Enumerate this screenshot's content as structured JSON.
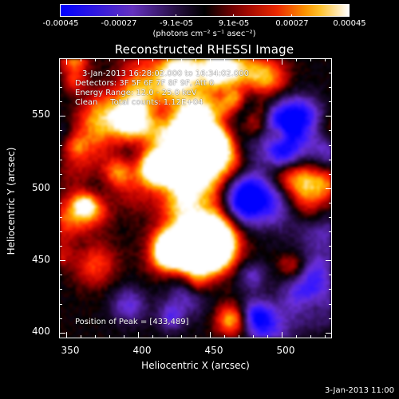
{
  "colorbar": {
    "tick_labels": [
      "-0.00045",
      "-0.00027",
      "-9.1e-05",
      "9.1e-05",
      "0.00027",
      "0.00045"
    ],
    "tick_values": [
      -0.00045,
      -0.00027,
      -9.1e-05,
      9.1e-05,
      0.00027,
      0.00045
    ],
    "unit_label": "(photons cm⁻² s⁻¹ asec⁻²)",
    "range": [
      -0.00045,
      0.00045
    ]
  },
  "image": {
    "title": "Reconstructed RHESSI Image",
    "time_range": "3-Jan-2013 16:28:02.000 to 16:34:02.000",
    "detectors": "Detectors: 3F 5F 6F 7F 8F 9F, Att 0",
    "energy_range": "Energy Range: 12.0 - 25.0 keV",
    "clean_counts": "Clean     Total counts: 1.12E+04",
    "peak_position": "Position of Peak = [433,489]",
    "peak": [
      433,
      489
    ]
  },
  "axes": {
    "xlabel": "Heliocentric X (arcsec)",
    "ylabel": "Heliocentric Y (arcsec)",
    "xticks": [
      "350",
      "400",
      "450",
      "500"
    ],
    "yticks": [
      "400",
      "450",
      "500",
      "550"
    ],
    "xtick_values": [
      350,
      400,
      450,
      500
    ],
    "ytick_values": [
      400,
      450,
      500,
      550
    ],
    "xlim": [
      345,
      535
    ],
    "ylim": [
      396,
      590
    ]
  },
  "footer": {
    "timestamp": "3-Jan-2013 11:00"
  },
  "colors": {
    "background": "#000000",
    "text": "#ffffff"
  }
}
